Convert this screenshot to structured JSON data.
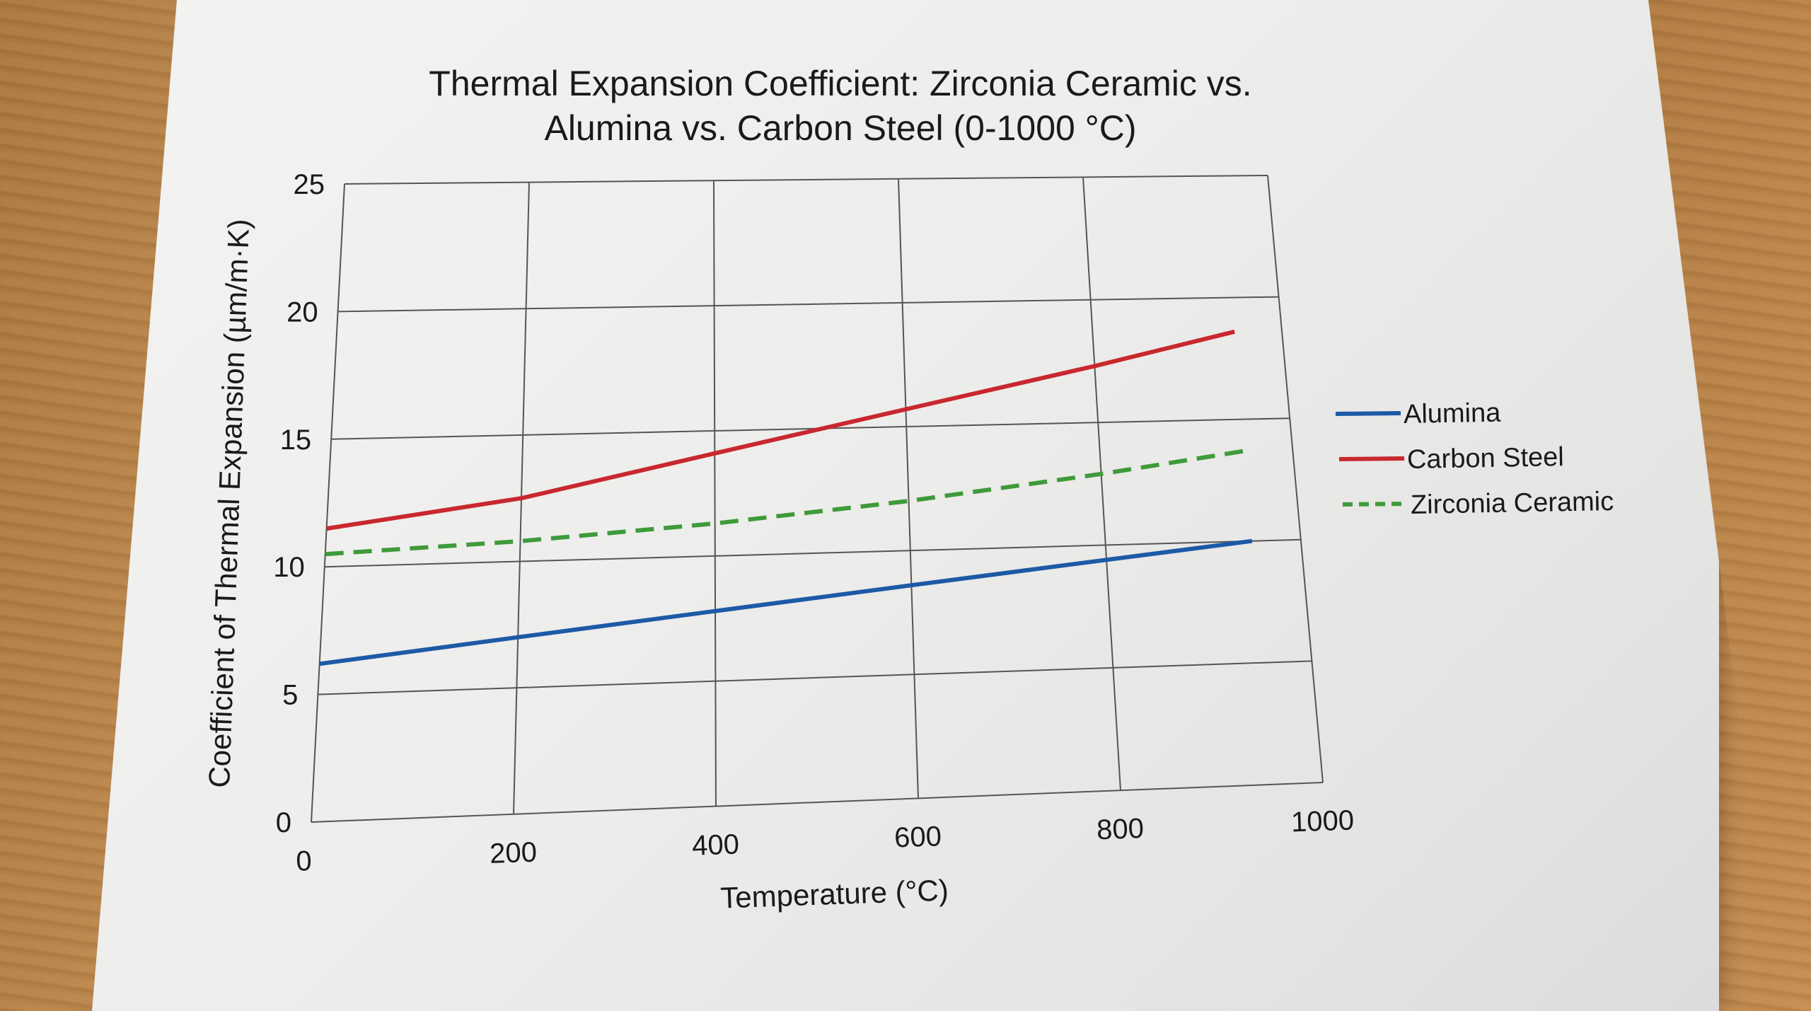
{
  "chart_data": {
    "type": "line",
    "title_line1": "Thermal Expansion Coefficient: Zirconia Ceramic vs.",
    "title_line2": "Alumina vs. Carbon Steel (0-1000 °C)",
    "xlabel": "Temperature (°C)",
    "ylabel": "Coefficient of Thermal Expansion (µm/m·K)",
    "xlim": [
      0,
      1000
    ],
    "ylim": [
      0,
      25
    ],
    "xticks": [
      0,
      200,
      400,
      600,
      800,
      1000
    ],
    "yticks": [
      0,
      5,
      10,
      15,
      20,
      25
    ],
    "grid": true,
    "legend_position": "right",
    "series": [
      {
        "name": "Alumina",
        "color": "#1c5aa6",
        "style": "solid",
        "x": [
          0,
          200,
          400,
          600,
          800,
          950
        ],
        "y": [
          6.2,
          7.0,
          7.8,
          8.6,
          9.4,
          10.0
        ]
      },
      {
        "name": "Carbon Steel",
        "color": "#c8282e",
        "style": "solid",
        "x": [
          0,
          200,
          400,
          600,
          800,
          950
        ],
        "y": [
          11.5,
          12.5,
          14.1,
          15.7,
          17.3,
          18.6
        ]
      },
      {
        "name": "Zirconia Ceramic",
        "color": "#3f9a3a",
        "style": "dashed",
        "x": [
          0,
          200,
          400,
          600,
          800,
          950
        ],
        "y": [
          10.5,
          10.8,
          11.3,
          12.0,
          12.9,
          13.7
        ]
      }
    ]
  }
}
